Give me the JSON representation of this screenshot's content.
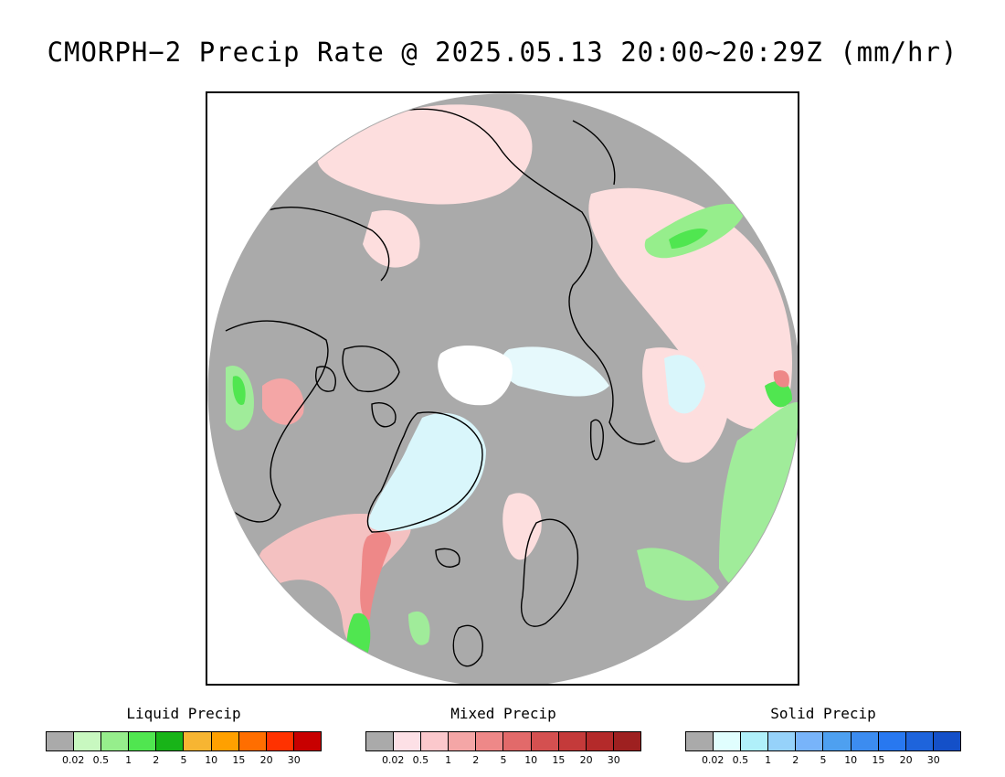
{
  "title": "CMORPH−2 Precip Rate @ 2025.05.13 20:00~20:29Z (mm/hr)",
  "map": {
    "projection": "north-polar-stereographic",
    "background_color": "#aaaaaa",
    "no_data_color": "#ffffff",
    "coastline_color": "#000000",
    "features": [
      {
        "name": "north-atlantic-mixed-band",
        "category": "mixed",
        "color": "#f4c1c1"
      },
      {
        "name": "siberia-mixed-precip",
        "category": "mixed",
        "color": "#fddede"
      },
      {
        "name": "north-america-liquid-precip",
        "category": "liquid",
        "color": "#a0ec9a"
      },
      {
        "name": "greenland-solid-precip",
        "category": "solid",
        "color": "#d9f6fb"
      },
      {
        "name": "russia-liquid-precip",
        "category": "liquid",
        "color": "#a0ec9a"
      }
    ]
  },
  "legends": [
    {
      "title": "Liquid Precip",
      "colors": [
        "#aaaaaa",
        "#c8f8c0",
        "#96ee8c",
        "#50e650",
        "#18b418",
        "#f7b532",
        "#ffa000",
        "#ff6e00",
        "#ff3200",
        "#c80000"
      ],
      "ticks": [
        "0.02",
        "0.5",
        "1",
        "2",
        "5",
        "10",
        "15",
        "20",
        "30"
      ]
    },
    {
      "title": "Mixed Precip",
      "colors": [
        "#aaaaaa",
        "#fde0e6",
        "#fbc8cc",
        "#f4a6a6",
        "#ee8888",
        "#e26a6a",
        "#d45050",
        "#c43a3a",
        "#b42a2a",
        "#9e2020"
      ],
      "ticks": [
        "0.02",
        "0.5",
        "1",
        "2",
        "5",
        "10",
        "15",
        "20",
        "30"
      ]
    },
    {
      "title": "Solid Precip",
      "colors": [
        "#aaaaaa",
        "#e0fefe",
        "#b0f0fa",
        "#96d2fa",
        "#78b4fa",
        "#4ea0f0",
        "#3c8cf0",
        "#2878f0",
        "#1e64dc",
        "#1450c8"
      ],
      "ticks": [
        "0.02",
        "0.5",
        "1",
        "2",
        "5",
        "10",
        "15",
        "20",
        "30"
      ]
    }
  ]
}
